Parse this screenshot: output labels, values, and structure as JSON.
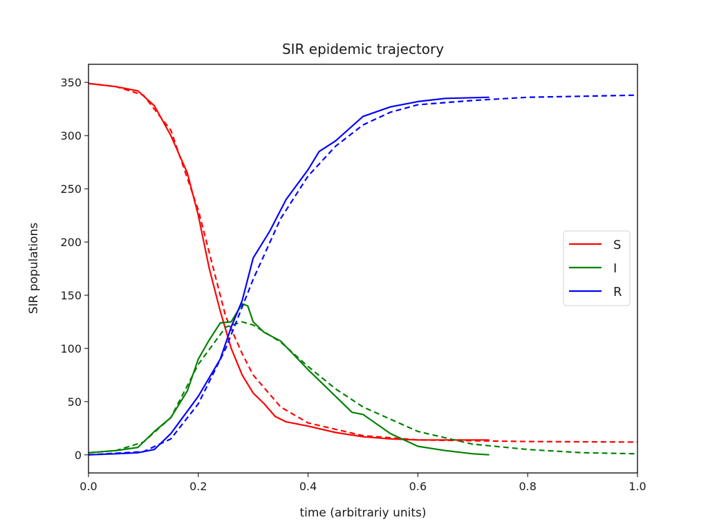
{
  "chart_data": {
    "type": "line",
    "title": "SIR epidemic trajectory",
    "xlabel": "time (arbitrariy units)",
    "ylabel": "SIR populations",
    "xlim": [
      0.0,
      1.0
    ],
    "ylim": [
      -17,
      367
    ],
    "xticks": [
      "0.0",
      "0.2",
      "0.4",
      "0.6",
      "0.8",
      "1.0"
    ],
    "xtick_values": [
      0,
      0.2,
      0.4,
      0.6,
      0.8,
      1.0
    ],
    "yticks": [
      "0",
      "50",
      "100",
      "150",
      "200",
      "250",
      "300",
      "350"
    ],
    "ytick_values": [
      0,
      50,
      100,
      150,
      200,
      250,
      300,
      350
    ],
    "grid": false,
    "legend": {
      "placement": "center-right",
      "entries": [
        {
          "label": "S",
          "color": "#ff0000"
        },
        {
          "label": "I",
          "color": "#008000"
        },
        {
          "label": "R",
          "color": "#0000ff"
        }
      ]
    },
    "series": [
      {
        "name": "S",
        "style": "solid",
        "color": "#ff0000",
        "x": [
          0,
          0.05,
          0.09,
          0.12,
          0.15,
          0.18,
          0.2,
          0.22,
          0.24,
          0.26,
          0.28,
          0.3,
          0.32,
          0.34,
          0.36,
          0.4,
          0.45,
          0.5,
          0.55,
          0.6,
          0.65,
          0.73
        ],
        "y": [
          349,
          346,
          342,
          328,
          300,
          265,
          225,
          175,
          135,
          100,
          75,
          58,
          48,
          36,
          31,
          27,
          21,
          17,
          15,
          14,
          14,
          14
        ]
      },
      {
        "name": "S",
        "style": "dashed",
        "color": "#ff0000",
        "x": [
          0,
          0.05,
          0.1,
          0.15,
          0.2,
          0.22,
          0.25,
          0.28,
          0.3,
          0.35,
          0.4,
          0.5,
          0.6,
          0.8,
          1.0
        ],
        "y": [
          349,
          346,
          338,
          305,
          230,
          190,
          130,
          95,
          75,
          45,
          30,
          18,
          14,
          12.5,
          12
        ]
      },
      {
        "name": "I",
        "style": "solid",
        "color": "#008000",
        "x": [
          0,
          0.05,
          0.09,
          0.12,
          0.15,
          0.18,
          0.2,
          0.22,
          0.24,
          0.26,
          0.28,
          0.29,
          0.3,
          0.32,
          0.35,
          0.4,
          0.45,
          0.48,
          0.5,
          0.55,
          0.6,
          0.65,
          0.7,
          0.73
        ],
        "y": [
          2,
          4,
          7,
          22,
          35,
          60,
          90,
          108,
          124,
          125,
          142,
          140,
          125,
          115,
          107,
          80,
          55,
          40,
          38,
          20,
          8,
          4,
          1,
          0
        ]
      },
      {
        "name": "I",
        "style": "dashed",
        "color": "#008000",
        "x": [
          0,
          0.05,
          0.1,
          0.15,
          0.2,
          0.25,
          0.28,
          0.3,
          0.35,
          0.4,
          0.45,
          0.5,
          0.6,
          0.7,
          0.8,
          0.9,
          1.0
        ],
        "y": [
          2,
          4,
          12,
          35,
          85,
          120,
          125,
          122,
          106,
          83,
          62,
          45,
          22,
          10,
          5,
          2,
          1
        ]
      },
      {
        "name": "R",
        "style": "solid",
        "color": "#0000ff",
        "x": [
          0,
          0.05,
          0.09,
          0.12,
          0.15,
          0.2,
          0.24,
          0.26,
          0.28,
          0.3,
          0.33,
          0.36,
          0.4,
          0.42,
          0.45,
          0.5,
          0.55,
          0.6,
          0.65,
          0.73
        ],
        "y": [
          0,
          1,
          2,
          5,
          20,
          55,
          90,
          120,
          145,
          185,
          210,
          240,
          268,
          285,
          295,
          318,
          327,
          332,
          335,
          336
        ]
      },
      {
        "name": "R",
        "style": "dashed",
        "color": "#0000ff",
        "x": [
          0,
          0.1,
          0.15,
          0.2,
          0.25,
          0.3,
          0.35,
          0.4,
          0.45,
          0.5,
          0.55,
          0.6,
          0.7,
          0.8,
          0.9,
          1.0
        ],
        "y": [
          0,
          3,
          15,
          48,
          100,
          165,
          222,
          262,
          290,
          310,
          322,
          329,
          333,
          336,
          337,
          338
        ]
      }
    ]
  }
}
